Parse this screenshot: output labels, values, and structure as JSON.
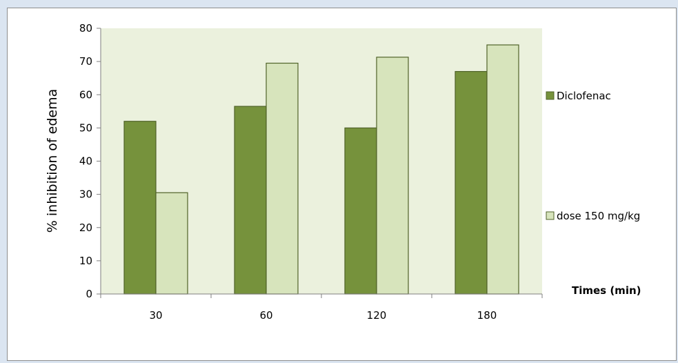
{
  "chart_data": {
    "type": "bar",
    "categories": [
      "30",
      "60",
      "120",
      "180"
    ],
    "series": [
      {
        "name": "Diclofenac",
        "values": [
          52,
          56.5,
          50,
          67
        ],
        "color": "#76923c"
      },
      {
        "name": "dose 150 mg/kg",
        "values": [
          30.5,
          69.5,
          71.3,
          75
        ],
        "color": "#d7e4bc"
      }
    ],
    "title": "",
    "xlabel": "Times (min)",
    "ylabel": "% inhibition of edema",
    "ylim": [
      0,
      80
    ],
    "yticks": [
      "0",
      "10",
      "20",
      "30",
      "40",
      "50",
      "60",
      "70",
      "80"
    ],
    "grid": false,
    "legend_position": "right",
    "plot_background": "#ebf1dd"
  }
}
